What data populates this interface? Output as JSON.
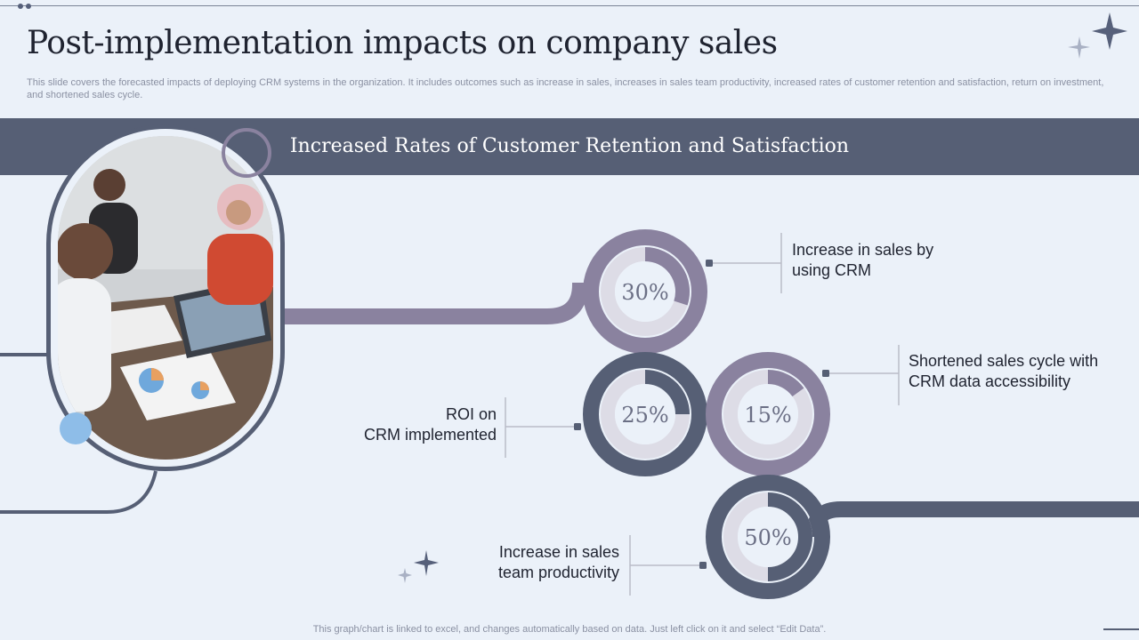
{
  "header": {
    "title": "Post-implementation impacts on company sales",
    "subtitle": "This slide covers the forecasted impacts of deploying CRM systems in the organization. It includes outcomes such as increase in sales, increases in sales team productivity, increased rates of customer retention and satisfaction, return on investment, and shortened sales cycle."
  },
  "banner": {
    "title": "Increased Rates of Customer Retention and Satisfaction"
  },
  "chart_data": {
    "type": "donut",
    "items": [
      {
        "label": "Increase in sales by using CRM",
        "value": 30,
        "display": "30%"
      },
      {
        "label": "ROI on CRM implemented",
        "value": 25,
        "display": "25%"
      },
      {
        "label": "Shortened sales cycle with CRM data accessibility",
        "value": 15,
        "display": "15%"
      },
      {
        "label": "Increase in sales team productivity",
        "value": 50,
        "display": "50%"
      }
    ]
  },
  "labels": {
    "sales_crm": [
      "Increase in sales by",
      "using CRM"
    ],
    "roi": [
      "ROI on",
      "CRM implemented"
    ],
    "cycle": [
      "Shortened sales cycle with",
      "CRM data accessibility"
    ],
    "productivity": [
      "Increase in sales",
      "team productivity"
    ]
  },
  "footer": {
    "note": "This graph/chart is linked to excel,  and changes automatically based on data. Just left click on it and select “Edit Data”."
  },
  "colors": {
    "dark": "#565f75",
    "purple": "#8a829f",
    "track": "#dddce6",
    "accent_blue": "#8ebde8"
  },
  "icons": [
    "sparkle-icon",
    "photo-business-meeting"
  ]
}
